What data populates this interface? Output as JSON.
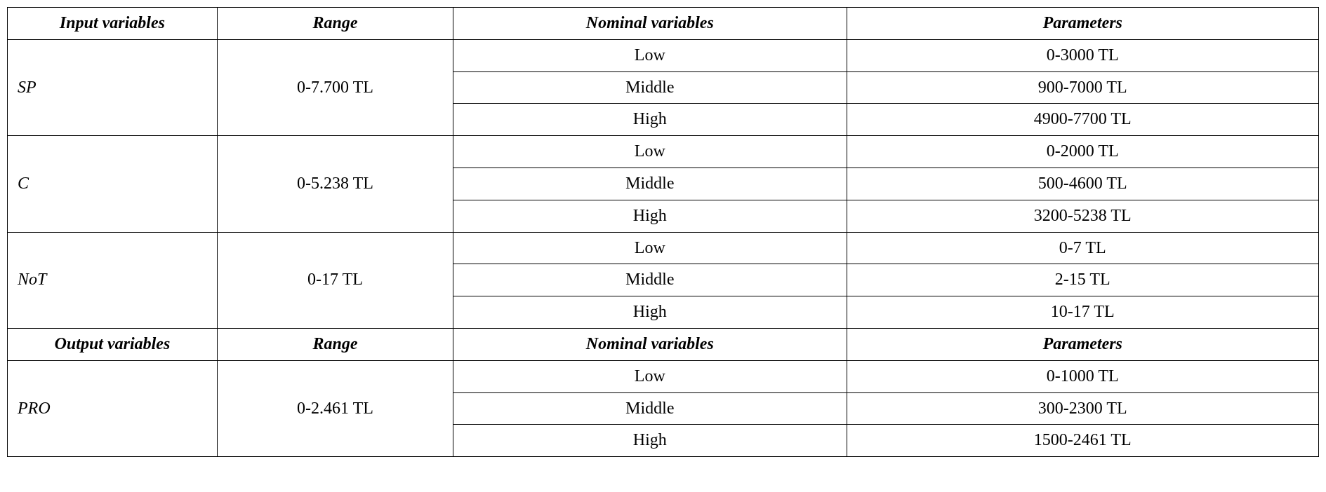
{
  "headers1": {
    "input": "Input variables",
    "range": "Range",
    "nominal": "Nominal variables",
    "params": "Parameters"
  },
  "headers2": {
    "output": "Output variables",
    "range": "Range",
    "nominal": "Nominal variables",
    "params": "Parameters"
  },
  "sp": {
    "name": "SP",
    "range": "0-7.700 TL",
    "rows": [
      {
        "nominal": "Low",
        "param": "0-3000 TL"
      },
      {
        "nominal": "Middle",
        "param": "900-7000 TL"
      },
      {
        "nominal": "High",
        "param": "4900-7700 TL"
      }
    ]
  },
  "c": {
    "name": "C",
    "range": "0-5.238 TL",
    "rows": [
      {
        "nominal": "Low",
        "param": "0-2000 TL"
      },
      {
        "nominal": "Middle",
        "param": "500-4600 TL"
      },
      {
        "nominal": "High",
        "param": "3200-5238 TL"
      }
    ]
  },
  "not": {
    "name": "NoT",
    "range": "0-17 TL",
    "rows": [
      {
        "nominal": "Low",
        "param": "0-7 TL"
      },
      {
        "nominal": "Middle",
        "param": "2-15 TL"
      },
      {
        "nominal": "High",
        "param": "10-17 TL"
      }
    ]
  },
  "pro": {
    "name": "PRO",
    "range": "0-2.461 TL",
    "rows": [
      {
        "nominal": "Low",
        "param": "0-1000 TL"
      },
      {
        "nominal": "Middle",
        "param": "300-2300 TL"
      },
      {
        "nominal": "High",
        "param": "1500-2461 TL"
      }
    ]
  },
  "style": {
    "font_family": "Times New Roman",
    "base_fontsize_pt": 24,
    "header_weight": "bold",
    "header_style": "italic",
    "variable_style": "italic",
    "border_color": "#000000",
    "background_color": "#ffffff",
    "text_color": "#000000",
    "col_widths_pct": [
      16,
      18,
      30,
      36
    ]
  }
}
